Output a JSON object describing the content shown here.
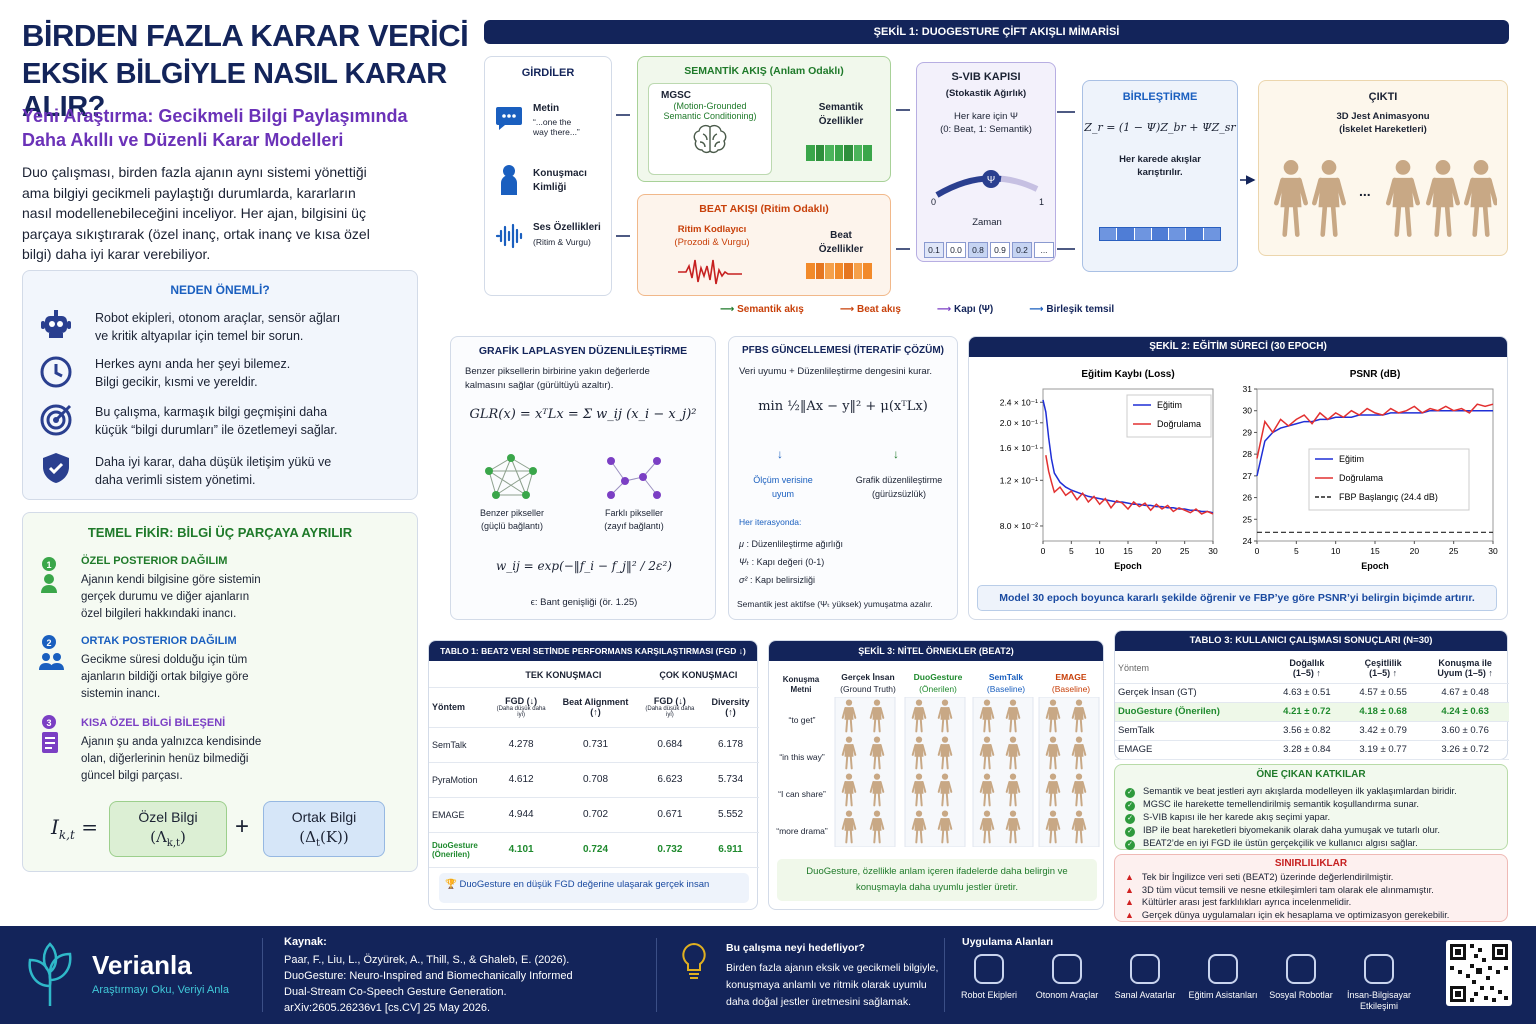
{
  "header": {
    "title1": "BİRDEN FAZLA KARAR VERİCİ",
    "title2": "EKSİK BİLGİYLE NASIL KARAR ALIR?",
    "subtitle1": "Yeni Araştırma: Gecikmeli Bilgi Paylaşımında",
    "subtitle2": "Daha Akıllı ve Düzenli Karar Modelleri",
    "intro": [
      "Duo çalışması, birden fazla ajanın aynı sistemi yönettiği",
      "ama bilgiyi gecikmeli paylaştığı durumlarda, kararların",
      "nasıl modellenebileceğini inceliyor. Her ajan, bilgisini üç",
      "parçaya sıkıştırarak (özel inanç, ortak inanç ve kısa özel",
      "bilgi) daha iyi karar verebiliyor."
    ]
  },
  "why": {
    "title": "NEDEN ÖNEMLİ?",
    "items": [
      {
        "icon": "robot-icon",
        "l1": "Robot ekipleri, otonom araçlar, sensör ağları",
        "l2": "ve kritik altyapılar için temel bir sorun."
      },
      {
        "icon": "clock-icon",
        "l1": "Herkes aynı anda her şeyi bilemez.",
        "l2": "Bilgi gecikir, kısmi ve yereldir."
      },
      {
        "icon": "target-icon",
        "l1": "Bu çalışma, karmaşık bilgi geçmişini daha",
        "l2": "küçük “bilgi durumları” ile özetlemeyi sağlar."
      },
      {
        "icon": "shield-icon",
        "l1": "Daha iyi karar, daha düşük iletişim yükü ve",
        "l2": "daha verimli sistem yönetimi."
      }
    ]
  },
  "idea": {
    "title": "TEMEL FİKİR: BİLGİ ÜÇ PARÇAYA AYRILIR",
    "items": [
      {
        "num": "1",
        "head": "ÖZEL POSTERIOR DAĞILIM",
        "lines": [
          "Ajanın kendi bilgisine göre sistemin",
          "gerçek durumu ve diğer ajanların",
          "özel bilgileri hakkındaki inancı."
        ]
      },
      {
        "num": "2",
        "head": "ORTAK POSTERIOR DAĞILIM",
        "lines": [
          "Gecikme süresi dolduğu için tüm",
          "ajanların bildiği ortak bilgiye göre",
          "sistemin inancı."
        ]
      },
      {
        "num": "3",
        "head": "KISA ÖZEL BİLGİ BİLEŞENİ",
        "lines": [
          "Ajanın şu anda yalnızca kendisinde",
          "olan, diğerlerinin henüz bilmediği",
          "güncel bilgi parçası."
        ]
      }
    ],
    "eq_lhs": "I",
    "eq_sub": "k,t",
    "eq_eq": "=",
    "box1": "Özel Bilgi",
    "box1m": "(Λ",
    "box1s": "k,t",
    "box1e": ")",
    "plus": "+",
    "box2": "Ortak Bilgi",
    "box2m": "(Δ",
    "box2s": "t",
    "box2e": "(K))"
  },
  "fig1": {
    "title": "ŞEKİL 1: DUOGESTURE ÇİFT AKIŞLI MİMARİSİ",
    "inputs": {
      "title": "GİRDİLER",
      "text": "Metin",
      "quote1": "“...one the",
      "quote2": "way there...”",
      "speaker1": "Konuşmacı",
      "speaker2": "Kimliği",
      "audio1": "Ses Özellikleri",
      "audio2": "(Ritim & Vurgu)"
    },
    "sem": {
      "title": "SEMANTİK AKIŞ (Anlam Odaklı)",
      "mgsc": "MGSC",
      "m1": "(Motion-Grounded",
      "m2": "Semantic Conditioning)",
      "f1": "Semantik",
      "f2": "Özellikler"
    },
    "beat": {
      "title": "BEAT AKIŞI (Ritim Odaklı)",
      "r1": "Ritim Kodlayıcı",
      "r2": "(Prozodi & Vurgu)",
      "f1": "Beat",
      "f2": "Özellikler"
    },
    "svib": {
      "title": "S-VIB KAPISI",
      "sub": "(Stokastik Ağırlık)",
      "l1": "Her kare için Ψ",
      "l2": "(0: Beat, 1: Semantik)",
      "g0": "0",
      "g1": "1",
      "psi": "Ψ",
      "time": "Zaman",
      "cells": [
        "0.1",
        "0.0",
        "0.8",
        "0.9",
        "0.2",
        "..."
      ]
    },
    "merge": {
      "title": "BİRLEŞTİRME",
      "eq": "Z_r = (1 − Ψ)Z_br + ΨZ_sr",
      "l1": "Her karede akışlar",
      "l2": "karıştırılır."
    },
    "out": {
      "title": "ÇIKTI",
      "l1": "3D Jest Animasyonu",
      "l2": "(İskelet Hareketleri)",
      "dots": "..."
    },
    "legend": [
      "Semantik akış",
      "Beat akış",
      "Kapı (Ψ)",
      "Birleşik temsil"
    ]
  },
  "glr": {
    "title": "GRAFİK LAPLASYEN DÜZENLİLEŞTİRME",
    "d1": "Benzer piksellerin birbirine yakın değerlerde",
    "d2": "kalmasını sağlar (gürültüyü azaltır).",
    "eq": "GLR(x) = xᵀLx = Σ w_ij (x_i − x_j)²",
    "n1a": "Benzer pikseller",
    "n1b": "(güçlü bağlantı)",
    "n2a": "Farklı pikseller",
    "n2b": "(zayıf bağlantı)",
    "weq": "w_ij = exp(−‖f_i − f_j‖² / 2ε²)",
    "eps": "ϵ:  Bant genişliği (ör. 1.25)"
  },
  "pfbs": {
    "title": "PFBS GÜNCELLEMESİ (İTERATİF ÇÖZÜM)",
    "d1": "Veri uyumu + Düzenlileştirme dengesini kurar.",
    "eq": "min ½‖Ax − y‖² + μ(xᵀLx)",
    "a1": "Ölçüm verisine",
    "a2": "uyum",
    "b1": "Grafik düzenlileştirme",
    "b2": "(gürüzsüzlük)",
    "iter": "Her iterasyonda:",
    "p1s": "μ",
    "p1": ":  Düzenlileştirme ağırlığı",
    "p2s": "Ψₜ",
    "p2": ":  Kapı değeri (0-1)",
    "p3s": "σ²",
    "p3": ":  Kapı belirsizliği",
    "note": "Semantik jest aktifse (Ψₜ yüksek) yumuşatma azalır."
  },
  "fig2": {
    "title": "ŞEKİL 2: EĞİTİM SÜRECİ (30 EPOCH)",
    "note": "Model 30 epoch boyunca kararlı şekilde öğrenir ve FBP’ye göre PSNR’yi belirgin biçimde artırır."
  },
  "chart_data": [
    {
      "type": "line",
      "title": "Eğitim Kaybı (Loss)",
      "xlabel": "Epoch",
      "ylabel": "",
      "yscale": "log",
      "ylim": [
        0.07,
        0.27
      ],
      "xlim": [
        0,
        30
      ],
      "yticks": [
        "2.4 × 10⁻¹",
        "2.0 × 10⁻¹",
        "1.6 × 10⁻¹",
        "1.2 × 10⁻¹",
        "8.0 × 10⁻²"
      ],
      "ytick_values": [
        0.24,
        0.2,
        0.16,
        0.12,
        0.08
      ],
      "xticks": [
        "0",
        "5",
        "10",
        "15",
        "20",
        "25",
        "30"
      ],
      "legend": "top-right",
      "series": [
        {
          "name": "Eğitim",
          "color": "#1f2fd6",
          "x": [
            0,
            0.5,
            1,
            1.5,
            2,
            3,
            4,
            5,
            6,
            7,
            8,
            9,
            10,
            11,
            12,
            13,
            14,
            15,
            16,
            17,
            18,
            19,
            20,
            21,
            22,
            23,
            24,
            25,
            26,
            27,
            28,
            29,
            30
          ],
          "y": [
            0.245,
            0.22,
            0.175,
            0.145,
            0.128,
            0.118,
            0.113,
            0.11,
            0.108,
            0.106,
            0.104,
            0.103,
            0.102,
            0.101,
            0.1,
            0.099,
            0.099,
            0.098,
            0.097,
            0.097,
            0.096,
            0.096,
            0.095,
            0.095,
            0.094,
            0.094,
            0.093,
            0.093,
            0.092,
            0.092,
            0.091,
            0.091,
            0.09
          ]
        },
        {
          "name": "Doğrulama",
          "color": "#e23030",
          "x": [
            0.5,
            1,
            1.5,
            2,
            3,
            4,
            5,
            6,
            7,
            8,
            9,
            10,
            11,
            12,
            13,
            14,
            15,
            16,
            17,
            18,
            19,
            20,
            21,
            22,
            23,
            24,
            25,
            26,
            27,
            28,
            29,
            30
          ],
          "y": [
            0.15,
            0.13,
            0.118,
            0.108,
            0.113,
            0.105,
            0.109,
            0.101,
            0.107,
            0.099,
            0.104,
            0.097,
            0.102,
            0.094,
            0.1,
            0.098,
            0.093,
            0.099,
            0.095,
            0.098,
            0.092,
            0.097,
            0.093,
            0.096,
            0.091,
            0.094,
            0.092,
            0.09,
            0.093,
            0.089,
            0.091,
            0.089
          ]
        }
      ]
    },
    {
      "type": "line",
      "title": "PSNR (dB)",
      "xlabel": "Epoch",
      "ylabel": "",
      "ylim": [
        24,
        31
      ],
      "xlim": [
        0,
        30
      ],
      "yticks": [
        "31",
        "30",
        "29",
        "28",
        "27",
        "26",
        "25",
        "24"
      ],
      "xticks": [
        "0",
        "5",
        "10",
        "15",
        "20",
        "25",
        "30"
      ],
      "legend": "right",
      "series": [
        {
          "name": "Eğitim",
          "color": "#1f2fd6",
          "x": [
            0,
            1,
            2,
            3,
            4,
            5,
            6,
            7,
            8,
            9,
            10,
            11,
            12,
            13,
            14,
            15,
            16,
            17,
            18,
            19,
            20,
            21,
            22,
            23,
            24,
            25,
            26,
            27,
            28,
            29,
            30
          ],
          "y": [
            27.0,
            28.6,
            29.0,
            29.2,
            29.3,
            29.4,
            29.5,
            29.5,
            29.6,
            29.6,
            29.7,
            29.7,
            29.7,
            29.8,
            29.8,
            29.8,
            29.8,
            29.9,
            29.9,
            29.9,
            29.9,
            29.9,
            30.0,
            30.0,
            30.0,
            30.0,
            30.0,
            30.0,
            30.0,
            30.0,
            30.0
          ]
        },
        {
          "name": "Doğrulama",
          "color": "#e23030",
          "x": [
            0,
            1,
            2,
            3,
            4,
            5,
            6,
            7,
            8,
            9,
            10,
            11,
            12,
            13,
            14,
            15,
            16,
            17,
            18,
            19,
            20,
            21,
            22,
            23,
            24,
            25,
            26,
            27,
            28,
            29,
            30
          ],
          "y": [
            27.8,
            29.5,
            29.0,
            29.6,
            29.3,
            29.6,
            29.8,
            29.4,
            29.9,
            29.6,
            29.9,
            29.7,
            30.0,
            29.8,
            30.1,
            29.9,
            29.8,
            30.1,
            29.9,
            30.0,
            30.2,
            29.9,
            30.1,
            30.0,
            30.2,
            30.0,
            30.1,
            29.9,
            30.3,
            30.2,
            30.3
          ]
        },
        {
          "name": "FBP Başlangıç (24.4 dB)",
          "color": "#222222",
          "dash": true,
          "x": [
            0,
            30
          ],
          "y": [
            24.4,
            24.4
          ]
        }
      ]
    }
  ],
  "tbl1": {
    "title": "TABLO 1: BEAT2 VERİ SETİNDE PERFORMANS KARŞILAŞTIRMASI (FGD ↓)",
    "g1": "TEK KONUŞMACI",
    "g2": "ÇOK KONUŞMACI",
    "h": [
      "Yöntem",
      "FGD (↓)",
      "Beat Alignment (↑)",
      "FGD (↓)",
      "Diversity (↑)"
    ],
    "hsub": "(Daha düşük daha iyi)",
    "rows": [
      [
        "SemTalk",
        "4.278",
        "0.731",
        "0.684",
        "6.178"
      ],
      [
        "PyraMotion",
        "4.612",
        "0.708",
        "6.623",
        "5.734"
      ],
      [
        "EMAGE",
        "4.944",
        "0.702",
        "0.671",
        "5.552"
      ],
      [
        "DuoGesture (Önerilen)",
        "4.101",
        "0.724",
        "0.732",
        "6.911"
      ]
    ],
    "note": "DuoGesture en düşük FGD değerine ulaşarak gerçek insan"
  },
  "fig3": {
    "title": "ŞEKİL 3: NİTEL ÖRNEKLER (BEAT2)",
    "c0a": "Konuşma",
    "c0b": "Metni",
    "cols": [
      {
        "a": "Gerçek İnsan",
        "b": "(Ground Truth)",
        "color": "#1b2233"
      },
      {
        "a": "DuoGesture",
        "b": "(Önerilen)",
        "color": "#1f8a2e"
      },
      {
        "a": "SemTalk",
        "b": "(Baseline)",
        "color": "#1a5fbf"
      },
      {
        "a": "EMAGE",
        "b": "(Baseline)",
        "color": "#c8400a"
      }
    ],
    "rows": [
      "“to get”",
      "“in this way”",
      "“I can share”",
      "“more drama”"
    ],
    "note1": "DuoGesture, özellikle anlam içeren ifadelerde daha belirgin ve",
    "note2": "konuşmayla daha uyumlu jestler üretir."
  },
  "tbl3": {
    "title": "TABLO 3: KULLANICI ÇALIŞMASI SONUÇLARI (N=30)",
    "h": [
      "Yöntem",
      "Doğallık",
      "Çeşitlilik",
      "Konuşma ile"
    ],
    "h2": [
      "",
      "(1–5) ↑",
      "(1–5) ↑",
      "Uyum (1–5) ↑"
    ],
    "rows": [
      [
        "Gerçek İnsan (GT)",
        "4.63 ± 0.51",
        "4.57 ± 0.55",
        "4.67 ± 0.48"
      ],
      [
        "DuoGesture (Önerilen)",
        "4.21 ± 0.72",
        "4.18 ± 0.68",
        "4.24 ± 0.63"
      ],
      [
        "SemTalk",
        "3.56 ± 0.82",
        "3.42 ± 0.79",
        "3.60 ± 0.76"
      ],
      [
        "EMAGE",
        "3.28 ± 0.84",
        "3.19 ± 0.77",
        "3.26 ± 0.72"
      ]
    ]
  },
  "contrib": {
    "title": "ÖNE ÇIKAN KATKILAR",
    "items": [
      "Semantik ve beat jestleri ayrı akışlarda modelleyen ilk yaklaşımlardan biridir.",
      "MGSC ile harekette temellendirilmiş semantik koşullandırma sunar.",
      "S-VIB kapısı ile her karede akış seçimi yapar.",
      "IBP ile beat hareketleri biyomekanik olarak daha yumuşak ve tutarlı olur.",
      "BEAT2’de en iyi FGD ile üstün gerçekçilik ve kullanıcı algısı sağlar."
    ]
  },
  "limits": {
    "title": "SINIRLILIKLAR",
    "items": [
      "Tek bir İngilizce veri seti (BEAT2) üzerinde değerlendirilmiştir.",
      "3D tüm vücut temsili ve nesne etkileşimleri tam olarak ele alınmamıştır.",
      "Kültürler arası jest farklılıkları ayrıca incelenmelidir.",
      "Gerçek dünya uygulamaları için ek hesaplama ve optimizasyon gerekebilir."
    ]
  },
  "footer": {
    "brand": "Verianla",
    "tagline": "Araştırmayı Oku, Veriyi Anla",
    "src_title": "Kaynak:",
    "src": [
      "Paar, F., Liu, L., Özyürek, A., Thill, S., & Ghaleb, E. (2026).",
      "DuoGesture: Neuro-Inspired and Biomechanically Informed",
      "Dual-Stream Co-Speech Gesture Generation.",
      "arXiv:2605.26236v1 [cs.CV] 25 May 2026."
    ],
    "aim_title": "Bu çalışma neyi hedefliyor?",
    "aim": [
      "Birden fazla ajanın eksik ve gecikmeli bilgiyle,",
      "konuşmaya anlamlı ve ritmik olarak uyumlu",
      "daha doğal jestler üretmesini sağlamak."
    ],
    "apps_title": "Uygulama Alanları",
    "apps": [
      {
        "label": "Robot Ekipleri",
        "icon": "robot-team-icon"
      },
      {
        "label": "Otonom Araçlar",
        "icon": "car-icon"
      },
      {
        "label": "Sanal Avatarlar",
        "icon": "avatar-icon"
      },
      {
        "label": "Eğitim Asistanları",
        "icon": "assistant-icon"
      },
      {
        "label": "Sosyal Robotlar",
        "icon": "social-robot-icon"
      },
      {
        "label": "İnsan-Bilgisayar",
        "label2": "Etkileşimi",
        "icon": "hci-icon"
      }
    ]
  }
}
